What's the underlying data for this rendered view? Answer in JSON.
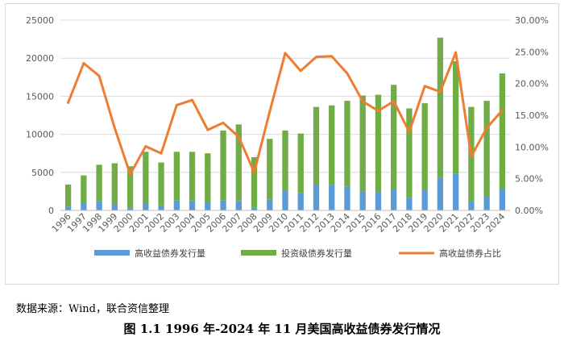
{
  "source_note": "数据来源：Wind，联合资信整理",
  "caption": "图 1.1 1996 年-2024 年 11 月美国高收益债券发行情况",
  "colors": {
    "high_yield": "#5B9BD5",
    "investment_grade": "#70AD47",
    "share": "#ED7D31",
    "grid": "#d9d9d9",
    "axis_text": "#595959"
  },
  "chart_data": {
    "type": "bar",
    "stacked": true,
    "categories": [
      "1996",
      "1997",
      "1998",
      "1999",
      "2000",
      "2001",
      "2002",
      "2003",
      "2004",
      "2005",
      "2006",
      "2007",
      "2008",
      "2009",
      "2010",
      "2011",
      "2012",
      "2013",
      "2014",
      "2015",
      "2016",
      "2017",
      "2018",
      "2019",
      "2020",
      "2021",
      "2022",
      "2023",
      "2024"
    ],
    "series": [
      {
        "name": "高收益债券发行量",
        "axis": "left",
        "color": "#5B9BD5",
        "values": [
          500,
          1000,
          1200,
          800,
          300,
          900,
          600,
          1300,
          1300,
          1000,
          1300,
          1300,
          400,
          1400,
          2600,
          2300,
          3300,
          3300,
          3100,
          2500,
          2400,
          2800,
          1600,
          2700,
          4300,
          4800,
          1200,
          1800,
          2800
        ]
      },
      {
        "name": "投资级债券发行量",
        "axis": "left",
        "color": "#70AD47",
        "values": [
          2900,
          3600,
          4800,
          5400,
          5500,
          6800,
          5700,
          6400,
          6400,
          6500,
          9200,
          10000,
          6600,
          8000,
          7900,
          7800,
          10300,
          10500,
          11300,
          12600,
          12800,
          13700,
          11800,
          11400,
          18400,
          14800,
          12400,
          12600,
          15200
        ]
      },
      {
        "name": "高收益债券占比",
        "axis": "right",
        "type": "line",
        "color": "#ED7D31",
        "values": [
          0.17,
          0.232,
          0.212,
          0.13,
          0.057,
          0.101,
          0.09,
          0.166,
          0.174,
          0.127,
          0.138,
          0.116,
          0.06,
          0.156,
          0.248,
          0.22,
          0.242,
          0.243,
          0.216,
          0.172,
          0.157,
          0.172,
          0.124,
          0.196,
          0.187,
          0.249,
          0.085,
          0.13,
          0.158
        ]
      }
    ],
    "y_left": {
      "min": 0,
      "max": 25000,
      "ticks": [
        "0",
        "5000",
        "10000",
        "15000",
        "20000",
        "25000"
      ]
    },
    "y_right": {
      "min": 0,
      "max": 0.3,
      "ticks": [
        "0.00%",
        "5.00%",
        "10.00%",
        "15.00%",
        "20.00%",
        "25.00%",
        "30.00%"
      ]
    },
    "grid": true,
    "legend_position": "bottom"
  }
}
